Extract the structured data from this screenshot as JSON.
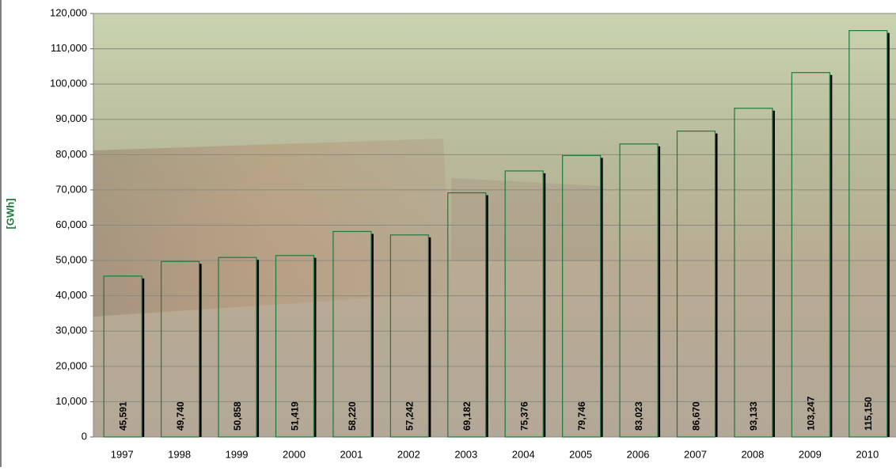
{
  "chart_data": {
    "type": "bar",
    "y_label": "[GWh]",
    "categories": [
      "1997",
      "1998",
      "1999",
      "2000",
      "2001",
      "2002",
      "2003",
      "2004",
      "2005",
      "2006",
      "2007",
      "2008",
      "2009",
      "2010"
    ],
    "values": [
      45591,
      49740,
      50858,
      51419,
      58220,
      57242,
      69182,
      75376,
      79746,
      83023,
      86670,
      93133,
      103247,
      115150
    ],
    "value_labels": [
      "45,591",
      "49,740",
      "50,858",
      "51,419",
      "58,220",
      "57,242",
      "69,182",
      "75,376",
      "79,746",
      "83,023",
      "86,670",
      "93,133",
      "103,247",
      "115,150"
    ],
    "color": "#1e7a3a",
    "ylim": [
      0,
      120000
    ],
    "yticks": [
      0,
      {
        "value": 10000,
        "label": "10,000"
      },
      {
        "value": 20000,
        "label": "20,000"
      },
      {
        "value": 30000,
        "label": "30,000"
      },
      {
        "value": 40000,
        "label": "40,000"
      },
      {
        "value": 50000,
        "label": "50,000"
      },
      {
        "value": 60000,
        "label": "60,000"
      },
      {
        "value": 70000,
        "label": "70,000"
      },
      {
        "value": 80000,
        "label": "80,000"
      },
      {
        "value": 90000,
        "label": "90,000"
      },
      {
        "value": 100000,
        "label": "100,000"
      },
      {
        "value": 110000,
        "label": "110,000"
      },
      {
        "value": 120000,
        "label": "120,000"
      }
    ],
    "grid": true
  }
}
